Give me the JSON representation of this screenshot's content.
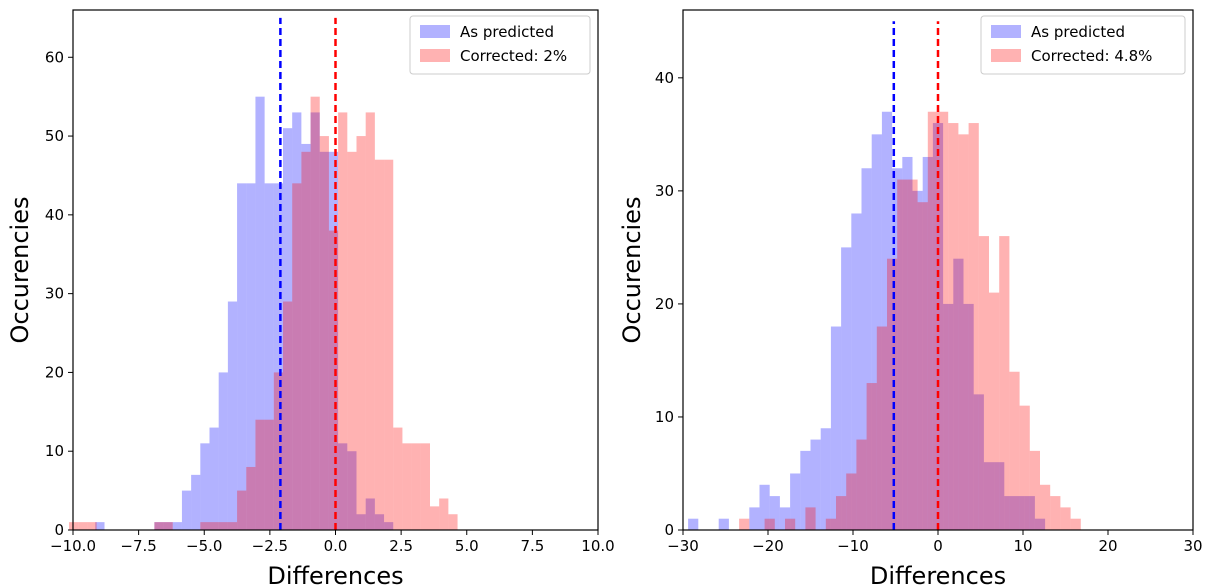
{
  "chart_data": [
    {
      "type": "histogram",
      "xlabel": "Differences",
      "ylabel": "Occurencies",
      "xlim": [
        -10,
        10
      ],
      "ylim": [
        0,
        66
      ],
      "xticks": [
        -10,
        -7.5,
        -5,
        -2.5,
        0,
        2.5,
        5,
        7.5,
        10
      ],
      "xtick_labels": [
        "−10.0",
        "−7.5",
        "−5.0",
        "−2.5",
        "0.0",
        "2.5",
        "5.0",
        "7.5",
        "10.0"
      ],
      "yticks": [
        0,
        10,
        20,
        30,
        40,
        50,
        60
      ],
      "ytick_labels": [
        "0",
        "10",
        "20",
        "30",
        "40",
        "50",
        "60"
      ],
      "legend_position": "top-right",
      "series": [
        {
          "name": "As predicted",
          "color": "#0000ff",
          "alpha": 0.3,
          "bins": [
            [
              -9.15,
              -8.8,
              1
            ],
            [
              -6.9,
              -6.55,
              1
            ],
            [
              -6.55,
              -6.2,
              1
            ],
            [
              -6.2,
              -5.85,
              1
            ],
            [
              -5.85,
              -5.5,
              5
            ],
            [
              -5.5,
              -5.15,
              7
            ],
            [
              -5.15,
              -4.8,
              11
            ],
            [
              -4.8,
              -4.45,
              13
            ],
            [
              -4.45,
              -4.1,
              20
            ],
            [
              -4.1,
              -3.75,
              29
            ],
            [
              -3.75,
              -3.4,
              44
            ],
            [
              -3.4,
              -3.05,
              44
            ],
            [
              -3.05,
              -2.7,
              55
            ],
            [
              -2.7,
              -2.35,
              44
            ],
            [
              -2.35,
              -2.0,
              44
            ],
            [
              -2.0,
              -1.65,
              51
            ],
            [
              -1.65,
              -1.3,
              53
            ],
            [
              -1.3,
              -0.95,
              49
            ],
            [
              -0.95,
              -0.6,
              53
            ],
            [
              -0.6,
              -0.25,
              48
            ],
            [
              -0.25,
              0.1,
              48
            ],
            [
              0.1,
              0.45,
              11
            ],
            [
              0.45,
              0.8,
              10
            ],
            [
              0.8,
              1.15,
              2
            ],
            [
              1.15,
              1.5,
              4
            ],
            [
              1.5,
              1.85,
              2
            ],
            [
              1.85,
              2.2,
              1
            ]
          ]
        },
        {
          "name": "Corrected: 2%",
          "color": "#ff0000",
          "alpha": 0.3,
          "bins": [
            [
              -10.15,
              -9.8,
              1
            ],
            [
              -9.8,
              -9.45,
              1
            ],
            [
              -9.45,
              -9.1,
              1
            ],
            [
              -6.9,
              -6.55,
              1
            ],
            [
              -6.55,
              -6.2,
              1
            ],
            [
              -5.15,
              -4.8,
              1
            ],
            [
              -4.8,
              -4.45,
              1
            ],
            [
              -4.45,
              -4.1,
              1
            ],
            [
              -4.1,
              -3.75,
              1
            ],
            [
              -3.75,
              -3.4,
              5
            ],
            [
              -3.4,
              -3.05,
              8
            ],
            [
              -3.05,
              -2.7,
              14
            ],
            [
              -2.7,
              -2.35,
              14
            ],
            [
              -2.35,
              -2.0,
              20
            ],
            [
              -2.0,
              -1.65,
              29
            ],
            [
              -1.65,
              -1.3,
              44
            ],
            [
              -1.3,
              -0.95,
              48
            ],
            [
              -0.95,
              -0.6,
              55
            ],
            [
              -0.6,
              -0.25,
              50
            ],
            [
              -0.25,
              0.1,
              38
            ],
            [
              0.1,
              0.45,
              53
            ],
            [
              0.45,
              0.8,
              48
            ],
            [
              0.8,
              1.15,
              50
            ],
            [
              1.15,
              1.5,
              53
            ],
            [
              1.5,
              1.85,
              47
            ],
            [
              1.85,
              2.2,
              47
            ],
            [
              2.2,
              2.55,
              13
            ],
            [
              2.55,
              2.9,
              11
            ],
            [
              2.9,
              3.25,
              11
            ],
            [
              3.25,
              3.6,
              11
            ],
            [
              3.6,
              3.95,
              3
            ],
            [
              3.95,
              4.3,
              4
            ],
            [
              4.3,
              4.65,
              2
            ]
          ]
        }
      ],
      "vlines": [
        {
          "x": -2.1,
          "ymax": 65,
          "color": "#0000ff",
          "style": "dashed"
        },
        {
          "x": 0.0,
          "ymax": 65,
          "color": "#ff0000",
          "style": "dashed"
        }
      ]
    },
    {
      "type": "histogram",
      "xlabel": "Differences",
      "ylabel": "Occurencies",
      "xlim": [
        -30,
        30
      ],
      "ylim": [
        0,
        46
      ],
      "xticks": [
        -30,
        -20,
        -10,
        0,
        10,
        20,
        30
      ],
      "xtick_labels": [
        "−30",
        "−20",
        "−10",
        "0",
        "10",
        "20",
        "30"
      ],
      "yticks": [
        0,
        10,
        20,
        30,
        40
      ],
      "ytick_labels": [
        "0",
        "10",
        "20",
        "30",
        "40"
      ],
      "legend_position": "top-right",
      "series": [
        {
          "name": "As predicted",
          "color": "#0000ff",
          "alpha": 0.3,
          "bins": [
            [
              -29.4,
              -28.2,
              1
            ],
            [
              -25.8,
              -24.6,
              1
            ],
            [
              -22.2,
              -21.0,
              2
            ],
            [
              -21.0,
              -19.8,
              4
            ],
            [
              -19.8,
              -18.6,
              3
            ],
            [
              -18.6,
              -17.4,
              2
            ],
            [
              -17.4,
              -16.2,
              5
            ],
            [
              -16.2,
              -15.0,
              7
            ],
            [
              -15.0,
              -13.8,
              8
            ],
            [
              -13.8,
              -12.6,
              9
            ],
            [
              -12.6,
              -11.4,
              18
            ],
            [
              -11.4,
              -10.2,
              25
            ],
            [
              -10.2,
              -9.0,
              28
            ],
            [
              -9.0,
              -7.8,
              32
            ],
            [
              -7.8,
              -6.6,
              35
            ],
            [
              -6.6,
              -5.4,
              37
            ],
            [
              -5.4,
              -4.2,
              32
            ],
            [
              -4.2,
              -3.0,
              33
            ],
            [
              -3.0,
              -1.8,
              30
            ],
            [
              -1.8,
              -0.6,
              33
            ],
            [
              -0.6,
              0.6,
              36
            ],
            [
              0.6,
              1.8,
              20
            ],
            [
              1.8,
              3.0,
              24
            ],
            [
              3.0,
              4.2,
              20
            ],
            [
              4.2,
              5.4,
              12
            ],
            [
              5.4,
              6.6,
              6
            ],
            [
              6.6,
              7.8,
              6
            ],
            [
              7.8,
              9.0,
              3
            ],
            [
              9.0,
              10.2,
              3
            ],
            [
              10.2,
              11.4,
              3
            ],
            [
              11.4,
              12.6,
              1
            ]
          ]
        },
        {
          "name": "Corrected: 4.8%",
          "color": "#ff0000",
          "alpha": 0.3,
          "bins": [
            [
              -23.4,
              -22.2,
              1
            ],
            [
              -20.4,
              -19.2,
              1
            ],
            [
              -18.0,
              -16.8,
              1
            ],
            [
              -15.6,
              -14.4,
              2
            ],
            [
              -13.2,
              -12.0,
              1
            ],
            [
              -12.0,
              -10.8,
              3
            ],
            [
              -10.8,
              -9.6,
              5
            ],
            [
              -9.6,
              -8.4,
              8
            ],
            [
              -8.4,
              -7.2,
              13
            ],
            [
              -7.2,
              -6.0,
              18
            ],
            [
              -6.0,
              -4.8,
              24
            ],
            [
              -4.8,
              -3.6,
              31
            ],
            [
              -3.6,
              -2.4,
              31
            ],
            [
              -2.4,
              -1.2,
              29
            ],
            [
              -1.2,
              0.0,
              37
            ],
            [
              0.0,
              1.2,
              37
            ],
            [
              1.2,
              2.4,
              36
            ],
            [
              2.4,
              3.6,
              35
            ],
            [
              3.6,
              4.8,
              36
            ],
            [
              4.8,
              6.0,
              26
            ],
            [
              6.0,
              7.2,
              21
            ],
            [
              7.2,
              8.4,
              26
            ],
            [
              8.4,
              9.6,
              14
            ],
            [
              9.6,
              10.8,
              11
            ],
            [
              10.8,
              12.0,
              7
            ],
            [
              12.0,
              13.2,
              4
            ],
            [
              13.2,
              14.4,
              3
            ],
            [
              14.4,
              15.6,
              2
            ],
            [
              15.6,
              16.8,
              1
            ]
          ]
        }
      ],
      "vlines": [
        {
          "x": -5.2,
          "ymax": 45,
          "color": "#0000ff",
          "style": "dashed"
        },
        {
          "x": 0.0,
          "ymax": 45,
          "color": "#ff0000",
          "style": "dashed"
        }
      ]
    }
  ]
}
